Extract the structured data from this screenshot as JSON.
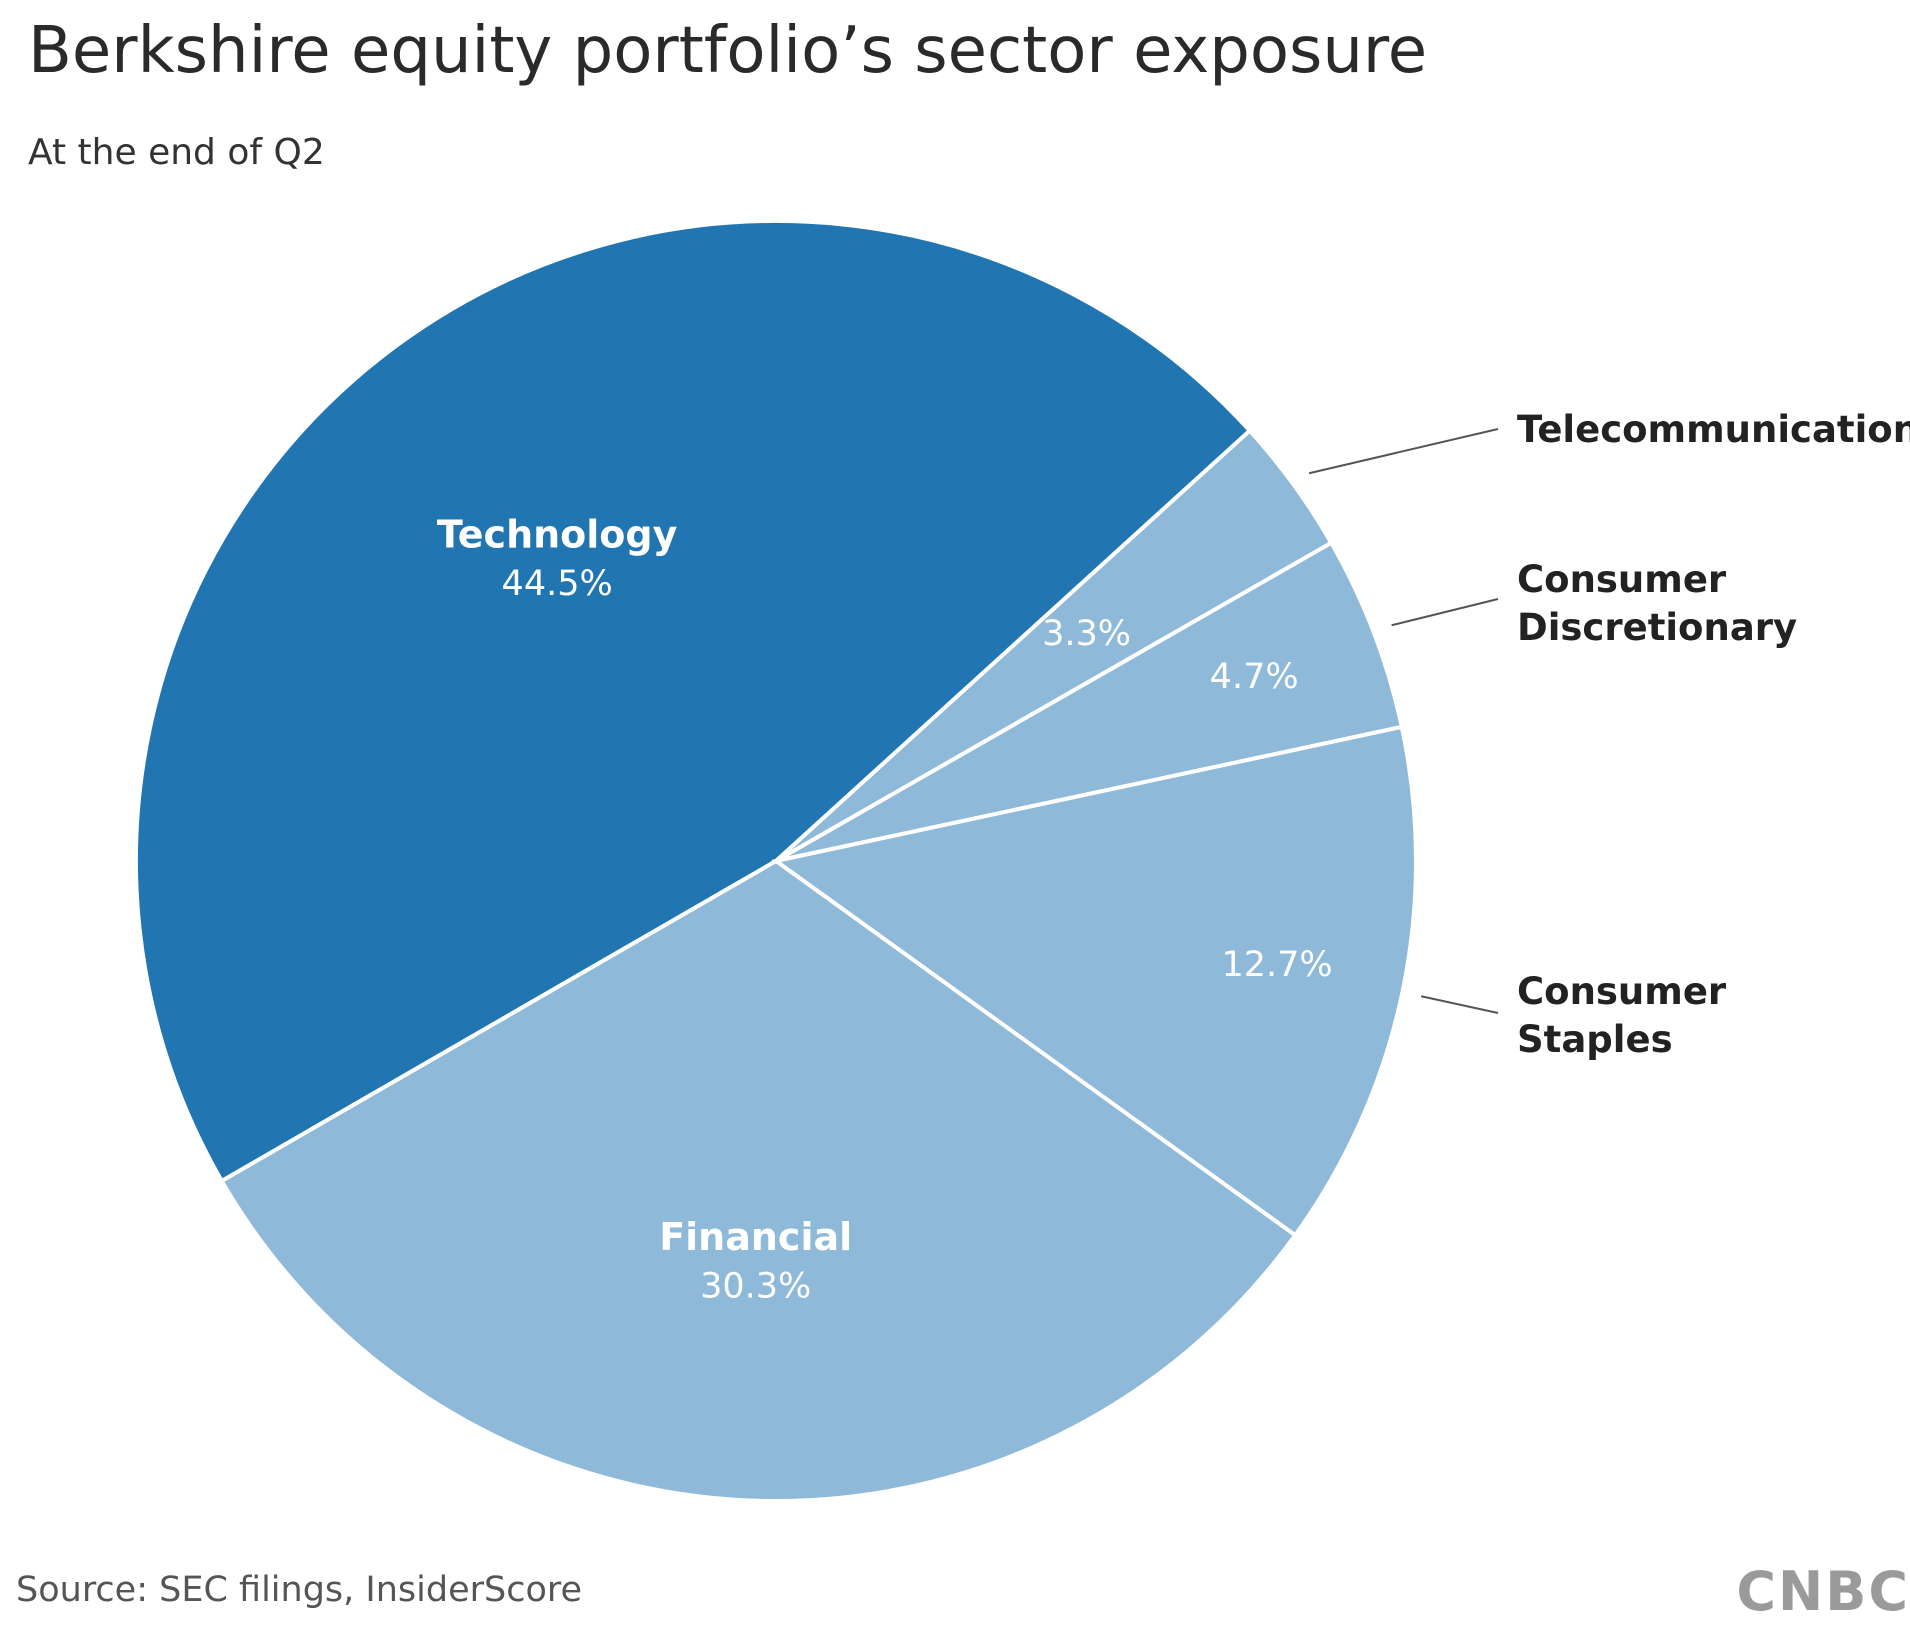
{
  "chart_data": {
    "type": "pie",
    "title": "Berkshire equity portfolio’s sector exposure",
    "subtitle": "At the end of Q2",
    "source": "Source: SEC filings, InsiderScore",
    "logo": "CNBC",
    "categories": [
      "Technology",
      "Telecommunication",
      "Consumer Discretionary",
      "Consumer Staples",
      "Financial"
    ],
    "values": [
      44.5,
      3.3,
      4.7,
      12.7,
      30.3
    ],
    "value_labels": [
      "44.5%",
      "3.3%",
      "4.7%",
      "12.7%",
      "30.3%"
    ],
    "colors": [
      "#2176b2",
      "#8fb9d9",
      "#8fb9d9",
      "#8fb9d9",
      "#8fb9d9"
    ]
  }
}
